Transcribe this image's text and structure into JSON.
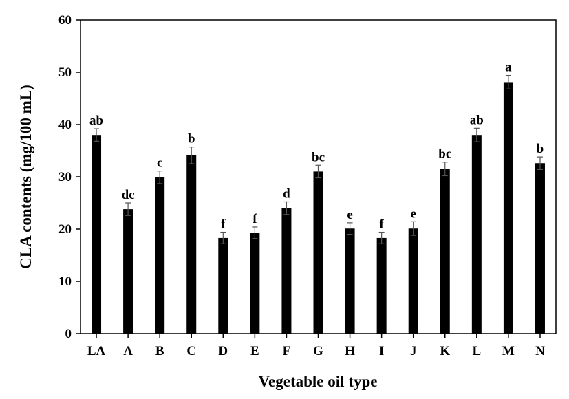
{
  "chart_data": {
    "type": "bar",
    "title": "",
    "xlabel": "Vegetable oil type",
    "ylabel": "CLA contents (mg/100 mL)",
    "ylim": [
      0,
      60
    ],
    "yticks": [
      0,
      10,
      20,
      30,
      40,
      50,
      60
    ],
    "grid": false,
    "legend": "none",
    "bar_color": "#000000",
    "categories": [
      "LA",
      "A",
      "B",
      "C",
      "D",
      "E",
      "F",
      "G",
      "H",
      "I",
      "J",
      "K",
      "L",
      "M",
      "N"
    ],
    "values": [
      38.0,
      23.8,
      29.9,
      34.1,
      18.3,
      19.3,
      24.0,
      31.0,
      20.1,
      18.3,
      20.1,
      31.5,
      38.0,
      48.1,
      32.6
    ],
    "errors": [
      1.2,
      1.2,
      1.2,
      1.6,
      1.1,
      1.1,
      1.2,
      1.2,
      1.1,
      1.1,
      1.3,
      1.3,
      1.3,
      1.3,
      1.2
    ],
    "letters": [
      "ab",
      "dc",
      "c",
      "b",
      "f",
      "f",
      "d",
      "bc",
      "e",
      "f",
      "e",
      "bc",
      "ab",
      "a",
      "b"
    ]
  }
}
